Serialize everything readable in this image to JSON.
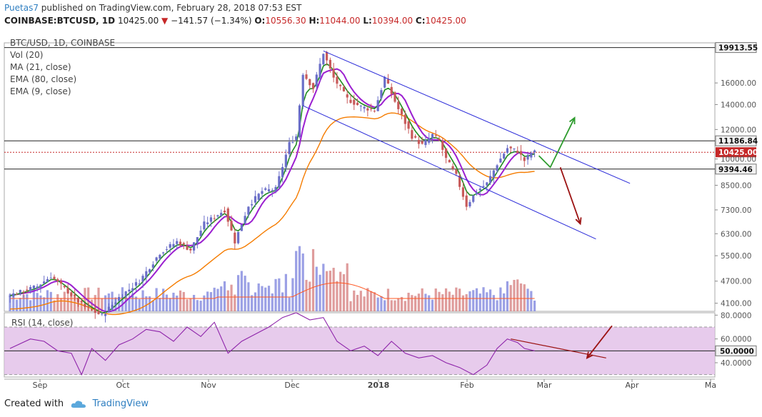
{
  "header": {
    "author": "Puetas7",
    "published_text": "published on TradingView.com, February 28, 2018 07:53 EST",
    "symbol": "COINBASE:BTCUSD, 1D",
    "last": "10425.00",
    "change": "−141.57 (−1.34%)",
    "open_label": "O:",
    "open": "10556.30",
    "high_label": "H:",
    "high": "11044.00",
    "low_label": "L:",
    "low": "10394.00",
    "close_label": "C:",
    "close": "10425.00"
  },
  "legend": {
    "title": "BTC/USD, 1D, COINBASE",
    "vol": "Vol (20)",
    "ma21": "MA (21, close)",
    "ema80": "EMA (80, close)",
    "ema9": "EMA (9, close)"
  },
  "colors": {
    "up": "#6a6ec8",
    "down": "#c85a5a",
    "ma21": "#1e8c1e",
    "ema9": "#9b1fd0",
    "ema80": "#f57c00",
    "vol_ma": "#ff5722",
    "channel": "#2b2bd9",
    "rsi": "#8e24aa",
    "rsi_band": "#e1bee7",
    "arrow_green": "#2e9c2e",
    "arrow_red": "#9b1212"
  },
  "footer": {
    "created_with": "Created with",
    "brand": "TradingView"
  },
  "chart_data": {
    "type": "candlestick",
    "title": "BTC/USD, 1D, COINBASE",
    "price_axis": {
      "scale": "log",
      "ticks": [
        16000,
        14000,
        12000,
        10000,
        8500,
        7300,
        6300,
        5500,
        4700,
        4100
      ],
      "tick_labels": [
        "16000.00",
        "14000.00",
        "12000.00",
        "10000.00",
        "8500.00",
        "7300.00",
        "6300.00",
        "5500.00",
        "4700.00",
        "4100.00"
      ],
      "range": [
        3900,
        20500
      ]
    },
    "levels": [
      {
        "label": "19913.55",
        "value": 19913.55,
        "style": "solid"
      },
      {
        "label": "11186.84",
        "value": 11186.84,
        "style": "solid"
      },
      {
        "label": "10425.00",
        "value": 10425.0,
        "style": "dotted",
        "current": true
      },
      {
        "label": "9394.46",
        "value": 9394.46,
        "style": "solid"
      }
    ],
    "x_axis": {
      "labels": [
        "Sep",
        "Oct",
        "Nov",
        "Dec",
        "2018",
        "Feb",
        "Mar",
        "Apr",
        "Ma"
      ]
    },
    "keypoints": [
      {
        "day": 0,
        "price": 4300
      },
      {
        "day": 8,
        "price": 4550
      },
      {
        "day": 12,
        "price": 4850
      },
      {
        "day": 17,
        "price": 4400
      },
      {
        "day": 22,
        "price": 4000
      },
      {
        "day": 27,
        "price": 3800
      },
      {
        "day": 32,
        "price": 4250
      },
      {
        "day": 38,
        "price": 4700
      },
      {
        "day": 44,
        "price": 5600
      },
      {
        "day": 49,
        "price": 6000
      },
      {
        "day": 53,
        "price": 5700
      },
      {
        "day": 57,
        "price": 6700
      },
      {
        "day": 63,
        "price": 7300
      },
      {
        "day": 66,
        "price": 6000
      },
      {
        "day": 70,
        "price": 7500
      },
      {
        "day": 74,
        "price": 8200
      },
      {
        "day": 78,
        "price": 8300
      },
      {
        "day": 82,
        "price": 11000
      },
      {
        "day": 84,
        "price": 11500
      },
      {
        "day": 86,
        "price": 17000
      },
      {
        "day": 89,
        "price": 15500
      },
      {
        "day": 92,
        "price": 19300
      },
      {
        "day": 95,
        "price": 16500
      },
      {
        "day": 99,
        "price": 14500
      },
      {
        "day": 103,
        "price": 13800
      },
      {
        "day": 107,
        "price": 13500
      },
      {
        "day": 110,
        "price": 16500
      },
      {
        "day": 114,
        "price": 13600
      },
      {
        "day": 118,
        "price": 11500
      },
      {
        "day": 121,
        "price": 10900
      },
      {
        "day": 124,
        "price": 11600
      },
      {
        "day": 126,
        "price": 11200
      },
      {
        "day": 128,
        "price": 10000
      },
      {
        "day": 131,
        "price": 9000
      },
      {
        "day": 134,
        "price": 7500
      },
      {
        "day": 137,
        "price": 8200
      },
      {
        "day": 140,
        "price": 8600
      },
      {
        "day": 143,
        "price": 9700
      },
      {
        "day": 146,
        "price": 10700
      },
      {
        "day": 149,
        "price": 10500
      },
      {
        "day": 151,
        "price": 9900
      },
      {
        "day": 153,
        "price": 10400
      },
      {
        "day": 154,
        "price": 10425
      }
    ],
    "channel_upper": [
      {
        "day": 92,
        "price": 19500
      },
      {
        "day": 182,
        "price": 8600
      }
    ],
    "channel_lower": [
      {
        "day": 86,
        "price": 13900
      },
      {
        "day": 172,
        "price": 6100
      }
    ],
    "rsi": {
      "label": "RSI (14, close)",
      "axis_labels": [
        "80.0000",
        "60.0000",
        "40.0000"
      ],
      "ticks": [
        80,
        60,
        40
      ],
      "band": [
        30,
        70
      ],
      "value_label": "50.0000",
      "value": 50,
      "range": [
        28,
        82
      ],
      "points": [
        {
          "day": 0,
          "v": 52
        },
        {
          "day": 6,
          "v": 60
        },
        {
          "day": 10,
          "v": 58
        },
        {
          "day": 14,
          "v": 50
        },
        {
          "day": 18,
          "v": 48
        },
        {
          "day": 21,
          "v": 30
        },
        {
          "day": 24,
          "v": 52
        },
        {
          "day": 28,
          "v": 42
        },
        {
          "day": 32,
          "v": 55
        },
        {
          "day": 36,
          "v": 60
        },
        {
          "day": 40,
          "v": 68
        },
        {
          "day": 44,
          "v": 66
        },
        {
          "day": 48,
          "v": 58
        },
        {
          "day": 52,
          "v": 70
        },
        {
          "day": 56,
          "v": 62
        },
        {
          "day": 60,
          "v": 74
        },
        {
          "day": 64,
          "v": 48
        },
        {
          "day": 68,
          "v": 58
        },
        {
          "day": 72,
          "v": 64
        },
        {
          "day": 76,
          "v": 70
        },
        {
          "day": 80,
          "v": 78
        },
        {
          "day": 84,
          "v": 82
        },
        {
          "day": 88,
          "v": 76
        },
        {
          "day": 92,
          "v": 78
        },
        {
          "day": 96,
          "v": 58
        },
        {
          "day": 100,
          "v": 50
        },
        {
          "day": 104,
          "v": 54
        },
        {
          "day": 108,
          "v": 46
        },
        {
          "day": 112,
          "v": 58
        },
        {
          "day": 116,
          "v": 48
        },
        {
          "day": 120,
          "v": 44
        },
        {
          "day": 124,
          "v": 46
        },
        {
          "day": 128,
          "v": 40
        },
        {
          "day": 132,
          "v": 36
        },
        {
          "day": 136,
          "v": 30
        },
        {
          "day": 140,
          "v": 38
        },
        {
          "day": 143,
          "v": 52
        },
        {
          "day": 146,
          "v": 60
        },
        {
          "day": 149,
          "v": 57
        },
        {
          "day": 151,
          "v": 52
        },
        {
          "day": 154,
          "v": 50
        }
      ]
    }
  }
}
